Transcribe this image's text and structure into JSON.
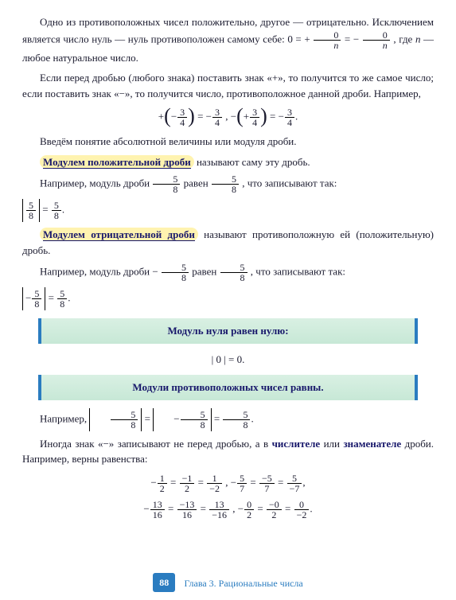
{
  "text": {
    "p1a": "Одно из противоположных чисел положительно, другое — отрицательно. Исключением является число нуль — нуль противоположен самому себе: ",
    "p1_eq_lhs": "0 = +",
    "p1_eq_n1": "0",
    "p1_eq_d1": "n",
    "p1_eq_mid": " = −",
    "p1_eq_n2": "0",
    "p1_eq_d2": "n",
    "p1b": ", где ",
    "p1c": "n",
    "p1d": " — любое натуральное число.",
    "p2": "Если перед дробью (любого знака) поставить знак «+», то получится то же самое число; если поставить знак «−», то получится число, противоположное данной дроби. Например,",
    "eq2_plus": "+",
    "eq2_sign1": "−",
    "eq2_n": "3",
    "eq2_d": "4",
    "eq2_eq": " = −",
    "eq2_comma": ",   −",
    "eq2_sign2": "+",
    "eq2_eq2": " = −",
    "eq2_dot": ".",
    "p3": "Введём понятие абсолютной величины или модуля дроби.",
    "def1_hl": "Модулем положительной дроби",
    "def1_tail": " называют саму эту дробь.",
    "p4a": "Например, модуль дроби ",
    "p4_n": "5",
    "p4_d": "8",
    "p4b": " равен ",
    "p4c": ", что записывают так:",
    "eq4_eq": " = ",
    "eq4_dot": ".",
    "def2_hl": "Модулем отрицательной дроби",
    "def2_tail": " называют противоположную ей (положительную) дробь.",
    "p5a": "Например, модуль дроби  −",
    "p5_n": "5",
    "p5_d": "8",
    "p5b": "  равен  ",
    "p5c": ", что записывают так:",
    "eq5_lead": "−",
    "eq5_eq": " = ",
    "eq5_dot": ".",
    "rule1": "Модуль нуля равен нулю:",
    "eq_zero": "| 0 | = 0.",
    "rule2": "Модули противоположных чисел равны.",
    "p6a": "Например,  ",
    "eq6_eq1": " = ",
    "eq6_lead": "−",
    "eq6_eq2": " = ",
    "eq6_dot": ".",
    "p7a": "Иногда знак «−» записывают не перед дробью, а в ",
    "p7b": "числителе",
    "p7c": " или ",
    "p7d": "знаменателе",
    "p7e": " дроби. Например, верны равенства:",
    "line1_a_lead": "−",
    "line1_a_n": "1",
    "line1_a_d": "2",
    "line1_eq": " = ",
    "line1_b_n": "−1",
    "line1_b_d": "2",
    "line1_c_n": "1",
    "line1_c_d": "−2",
    "line1_comma": ",    −",
    "line1_d_n": "5",
    "line1_d_d": "7",
    "line1_e_n": "−5",
    "line1_e_d": "7",
    "line1_f_n": "5",
    "line1_f_d": "−7",
    "line1_end": ",",
    "line2_a_lead": "−",
    "line2_a_n": "13",
    "line2_a_d": "16",
    "line2_b_n": "−13",
    "line2_b_d": "16",
    "line2_c_n": "13",
    "line2_c_d": "−16",
    "line2_comma": ",    −",
    "line2_d_n": "0",
    "line2_d_d": "2",
    "line2_e_n": "−0",
    "line2_e_d": "2",
    "line2_f_n": "0",
    "line2_f_d": "−2",
    "line2_end": "."
  },
  "footer": {
    "page": "88",
    "chapter": "Глава 3. Рациональные числа"
  },
  "colors": {
    "bodyText": "#1a1a2e",
    "accentBlue": "#2a7cc0",
    "defBlue": "#18186b",
    "highlight": "#fff3b0",
    "ruleBg1": "#d9f0e3",
    "ruleBg2": "#c7e8d6",
    "pageBg": "#ffffff"
  },
  "fonts": {
    "body_pt": 13,
    "rule_pt": 13,
    "footer_pt": 12
  }
}
